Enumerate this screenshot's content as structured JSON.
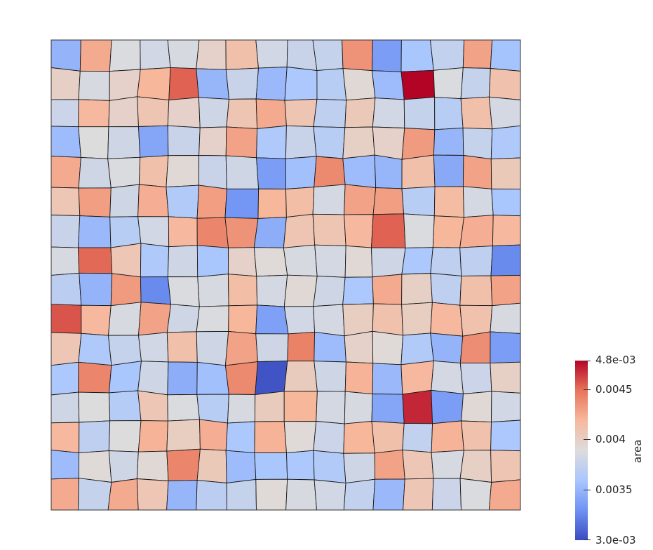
{
  "colorbar": {
    "title": "area",
    "min_label": "3.0e-03",
    "max_label": "4.8e-03",
    "tick_labels": [
      "0.0045",
      "0.004",
      "0.0035"
    ],
    "colormap_stops": [
      "#3b4cc0",
      "#6f92f3",
      "#aac7fd",
      "#dddcdc",
      "#f7b89c",
      "#e7745b",
      "#b40426"
    ]
  },
  "mesh": {
    "rows": 16,
    "cols": 16,
    "cell_values": [
      [
        0.27,
        0.7,
        0.49,
        0.46,
        0.48,
        0.55,
        0.63,
        0.46,
        0.43,
        0.42,
        0.76,
        0.2,
        0.33,
        0.41,
        0.72,
        0.32
      ],
      [
        0.56,
        0.48,
        0.55,
        0.67,
        0.86,
        0.28,
        0.43,
        0.29,
        0.34,
        0.38,
        0.52,
        0.3,
        1.0,
        0.49,
        0.42,
        0.62
      ],
      [
        0.44,
        0.66,
        0.55,
        0.61,
        0.55,
        0.45,
        0.61,
        0.7,
        0.61,
        0.4,
        0.59,
        0.46,
        0.42,
        0.38,
        0.63,
        0.47
      ],
      [
        0.3,
        0.5,
        0.45,
        0.23,
        0.43,
        0.55,
        0.72,
        0.35,
        0.43,
        0.38,
        0.56,
        0.55,
        0.74,
        0.28,
        0.42,
        0.35
      ],
      [
        0.7,
        0.45,
        0.49,
        0.63,
        0.52,
        0.43,
        0.45,
        0.2,
        0.31,
        0.78,
        0.3,
        0.28,
        0.63,
        0.24,
        0.72,
        0.59
      ],
      [
        0.6,
        0.73,
        0.45,
        0.69,
        0.36,
        0.73,
        0.18,
        0.67,
        0.64,
        0.47,
        0.72,
        0.73,
        0.38,
        0.65,
        0.47,
        0.33
      ],
      [
        0.43,
        0.29,
        0.38,
        0.46,
        0.66,
        0.79,
        0.76,
        0.25,
        0.61,
        0.61,
        0.66,
        0.86,
        0.49,
        0.67,
        0.69,
        0.66
      ],
      [
        0.48,
        0.85,
        0.6,
        0.35,
        0.45,
        0.33,
        0.55,
        0.51,
        0.48,
        0.47,
        0.52,
        0.45,
        0.34,
        0.4,
        0.4,
        0.15
      ],
      [
        0.39,
        0.27,
        0.74,
        0.15,
        0.49,
        0.48,
        0.64,
        0.47,
        0.52,
        0.45,
        0.34,
        0.7,
        0.56,
        0.4,
        0.63,
        0.72
      ],
      [
        0.88,
        0.66,
        0.48,
        0.72,
        0.45,
        0.49,
        0.67,
        0.21,
        0.46,
        0.47,
        0.57,
        0.62,
        0.57,
        0.66,
        0.62,
        0.48
      ],
      [
        0.6,
        0.35,
        0.42,
        0.46,
        0.63,
        0.45,
        0.72,
        0.45,
        0.8,
        0.3,
        0.55,
        0.51,
        0.36,
        0.27,
        0.77,
        0.2
      ],
      [
        0.34,
        0.79,
        0.33,
        0.45,
        0.25,
        0.31,
        0.78,
        0.02,
        0.58,
        0.45,
        0.68,
        0.29,
        0.66,
        0.47,
        0.44,
        0.56
      ],
      [
        0.45,
        0.5,
        0.37,
        0.6,
        0.49,
        0.38,
        0.48,
        0.58,
        0.67,
        0.47,
        0.48,
        0.23,
        0.95,
        0.2,
        0.52,
        0.46
      ],
      [
        0.66,
        0.4,
        0.5,
        0.68,
        0.57,
        0.69,
        0.34,
        0.68,
        0.51,
        0.44,
        0.67,
        0.63,
        0.41,
        0.68,
        0.62,
        0.34
      ],
      [
        0.3,
        0.51,
        0.45,
        0.52,
        0.79,
        0.59,
        0.3,
        0.33,
        0.34,
        0.36,
        0.45,
        0.72,
        0.6,
        0.48,
        0.56,
        0.61
      ],
      [
        0.7,
        0.42,
        0.7,
        0.6,
        0.28,
        0.39,
        0.42,
        0.51,
        0.48,
        0.46,
        0.41,
        0.29,
        0.6,
        0.44,
        0.49,
        0.7
      ]
    ]
  }
}
